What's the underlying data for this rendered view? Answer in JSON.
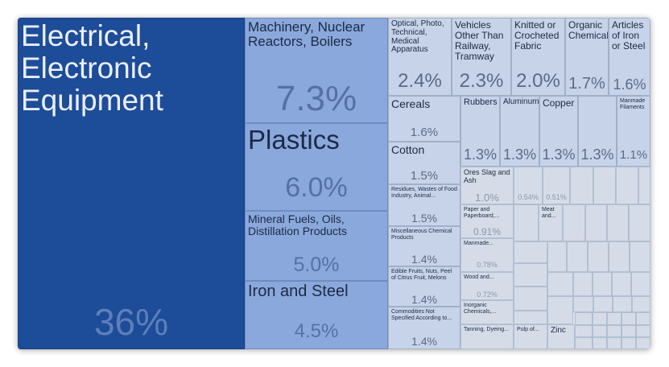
{
  "chart_data": {
    "type": "treemap",
    "title": "",
    "items": [
      {
        "name": "Electrical, Electronic Equipment",
        "label": "36%",
        "value": 36
      },
      {
        "name": "Machinery, Nuclear Reactors, Boilers",
        "label": "7.3%",
        "value": 7.3
      },
      {
        "name": "Plastics",
        "label": "6.0%",
        "value": 6.0
      },
      {
        "name": "Mineral Fuels, Oils, Distillation Products",
        "label": "5.0%",
        "value": 5.0
      },
      {
        "name": "Iron and Steel",
        "label": "4.5%",
        "value": 4.5
      },
      {
        "name": "Optical, Photo, Technical, Medical Apparatus",
        "label": "2.4%",
        "value": 2.4
      },
      {
        "name": "Vehicles Other Than Railway, Tramway",
        "label": "2.3%",
        "value": 2.3
      },
      {
        "name": "Knitted or Crocheted Fabric",
        "label": "2.0%",
        "value": 2.0
      },
      {
        "name": "Organic Chemicals",
        "label": "1.7%",
        "value": 1.7
      },
      {
        "name": "Articles of Iron or Steel",
        "label": "1.6%",
        "value": 1.6
      },
      {
        "name": "Cereals",
        "label": "1.6%",
        "value": 1.6
      },
      {
        "name": "Cotton",
        "label": "1.5%",
        "value": 1.5
      },
      {
        "name": "Residues, Wastes of Food Industry, Animal...",
        "label": "1.5%",
        "value": 1.5
      },
      {
        "name": "Miscellaneous Chemical Products",
        "label": "1.4%",
        "value": 1.4
      },
      {
        "name": "Edible Fruits, Nuts, Peel of Citrus Fruit, Melons",
        "label": "1.4%",
        "value": 1.4
      },
      {
        "name": "Commodities Not Specified According to...",
        "label": "1.4%",
        "value": 1.4
      },
      {
        "name": "Rubbers",
        "label": "1.3%",
        "value": 1.3
      },
      {
        "name": "Aluminum",
        "label": "1.3%",
        "value": 1.3
      },
      {
        "name": "Copper",
        "label": "1.3%",
        "value": 1.3
      },
      {
        "name": "",
        "label": "1.3%",
        "value": 1.3
      },
      {
        "name": "Manmade Filaments",
        "label": "1.1%",
        "value": 1.1
      },
      {
        "name": "Ores Slag and Ash",
        "label": "1.0%",
        "value": 1.0
      },
      {
        "name": "",
        "label": "0.54%",
        "value": 0.54
      },
      {
        "name": "",
        "label": "0.51%",
        "value": 0.51
      },
      {
        "name": "Paper and Paperboard,...",
        "label": "0.91%",
        "value": 0.91
      },
      {
        "name": "Meat and...",
        "label": "",
        "value": null
      },
      {
        "name": "Manmade...",
        "label": "0.78%",
        "value": 0.78
      },
      {
        "name": "Wood and...",
        "label": "0.72%",
        "value": 0.72
      },
      {
        "name": "Inorganic Chemicals,...",
        "label": "",
        "value": null
      },
      {
        "name": "Tanning, Dyeing...",
        "label": "",
        "value": null
      },
      {
        "name": "Pulp of...",
        "label": "",
        "value": null
      },
      {
        "name": "Zinc",
        "label": "",
        "value": null
      }
    ],
    "colors": {
      "largest": "#1d4c99",
      "large": "#8aa8dc",
      "medium": "#c7d3e8",
      "small": "#d5dce8",
      "background": "#dfe4ec"
    }
  }
}
